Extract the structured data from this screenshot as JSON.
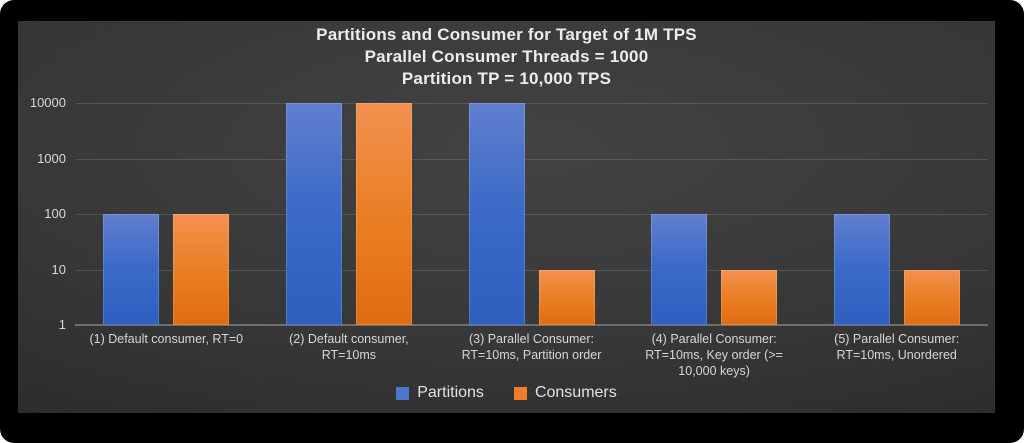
{
  "chart_data": {
    "type": "bar",
    "scale": "log",
    "title_lines": [
      "Partitions and Consumer for Target of 1M TPS",
      "Parallel Consumer Threads = 1000",
      "Partition TP = 10,000 TPS"
    ],
    "categories": [
      "(1) Default consumer, RT=0",
      "(2) Default consumer, RT=10ms",
      "(3) Parallel Consumer: RT=10ms, Partition order",
      "(4) Parallel Consumer: RT=10ms, Key order (>= 10,000 keys)",
      "(5) Parallel Consumer: RT=10ms, Unordered"
    ],
    "series": [
      {
        "name": "Partitions",
        "color": "#4472C4",
        "values": [
          100,
          10000,
          10000,
          100,
          100
        ]
      },
      {
        "name": "Consumers",
        "color": "#ED7D31",
        "values": [
          100,
          10000,
          10,
          10,
          10
        ]
      }
    ],
    "y_ticks": [
      10000,
      1000,
      100,
      10,
      1
    ],
    "ylim": [
      1,
      10000
    ],
    "xlabel": "",
    "ylabel": "",
    "grid": true,
    "legend_position": "bottom"
  },
  "colors": {
    "background": "#000000",
    "panel_center": "#434343",
    "panel_edge": "#232323",
    "gridline": "rgba(255,255,255,0.13)",
    "baseline": "#6e6e6e",
    "text": "#ececec",
    "axis_text": "#d8d8d8",
    "partitions_blue": "#4472C4",
    "consumers_orange": "#ED7D31"
  }
}
